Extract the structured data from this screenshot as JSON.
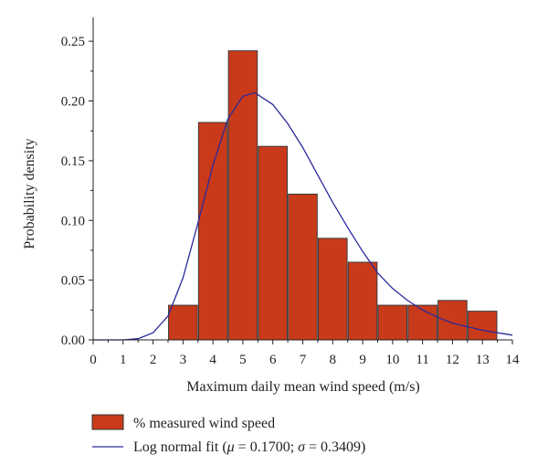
{
  "chart_data": {
    "type": "bar",
    "title": "",
    "xlabel": "Maximum daily mean wind speed (m/s)",
    "ylabel": "Probability density",
    "xlim": [
      0,
      14
    ],
    "ylim": [
      0,
      0.27
    ],
    "x_ticks": [
      "0",
      "1",
      "2",
      "3",
      "4",
      "5",
      "6",
      "7",
      "8",
      "9",
      "10",
      "11",
      "12",
      "13",
      "14"
    ],
    "y_ticks": [
      "0.00",
      "0.05",
      "0.10",
      "0.15",
      "0.20",
      "0.25"
    ],
    "grid": false,
    "legend_position": "bottom-left",
    "series": [
      {
        "name": "% measured wind speed",
        "kind": "histogram",
        "color": "#c93a1b",
        "bins": [
          {
            "from": 2.5,
            "to": 3.5,
            "value": 0.029
          },
          {
            "from": 3.5,
            "to": 4.5,
            "value": 0.182
          },
          {
            "from": 4.5,
            "to": 5.5,
            "value": 0.242
          },
          {
            "from": 5.5,
            "to": 6.5,
            "value": 0.162
          },
          {
            "from": 6.5,
            "to": 7.5,
            "value": 0.122
          },
          {
            "from": 7.5,
            "to": 8.5,
            "value": 0.085
          },
          {
            "from": 8.5,
            "to": 9.5,
            "value": 0.065
          },
          {
            "from": 9.5,
            "to": 10.5,
            "value": 0.029
          },
          {
            "from": 10.5,
            "to": 11.5,
            "value": 0.029
          },
          {
            "from": 11.5,
            "to": 12.5,
            "value": 0.033
          },
          {
            "from": 12.5,
            "to": 13.5,
            "value": 0.024
          }
        ]
      },
      {
        "name": "Log normal fit (μ = 0.1700; σ = 0.3409)",
        "kind": "line",
        "color": "#2a2a9a",
        "x": [
          0,
          1.0,
          1.5,
          2.0,
          2.5,
          3.0,
          3.5,
          4.0,
          4.5,
          5.0,
          5.4,
          6.0,
          6.5,
          7.0,
          7.5,
          8.0,
          8.5,
          9.0,
          9.5,
          10.0,
          10.5,
          11.0,
          11.5,
          12.0,
          12.5,
          13.0,
          13.5,
          14.0
        ],
        "y": [
          0.0,
          0.0,
          0.001,
          0.006,
          0.02,
          0.052,
          0.098,
          0.146,
          0.185,
          0.204,
          0.207,
          0.197,
          0.181,
          0.161,
          0.138,
          0.115,
          0.094,
          0.074,
          0.056,
          0.043,
          0.033,
          0.025,
          0.019,
          0.014,
          0.011,
          0.008,
          0.006,
          0.004
        ]
      }
    ]
  }
}
